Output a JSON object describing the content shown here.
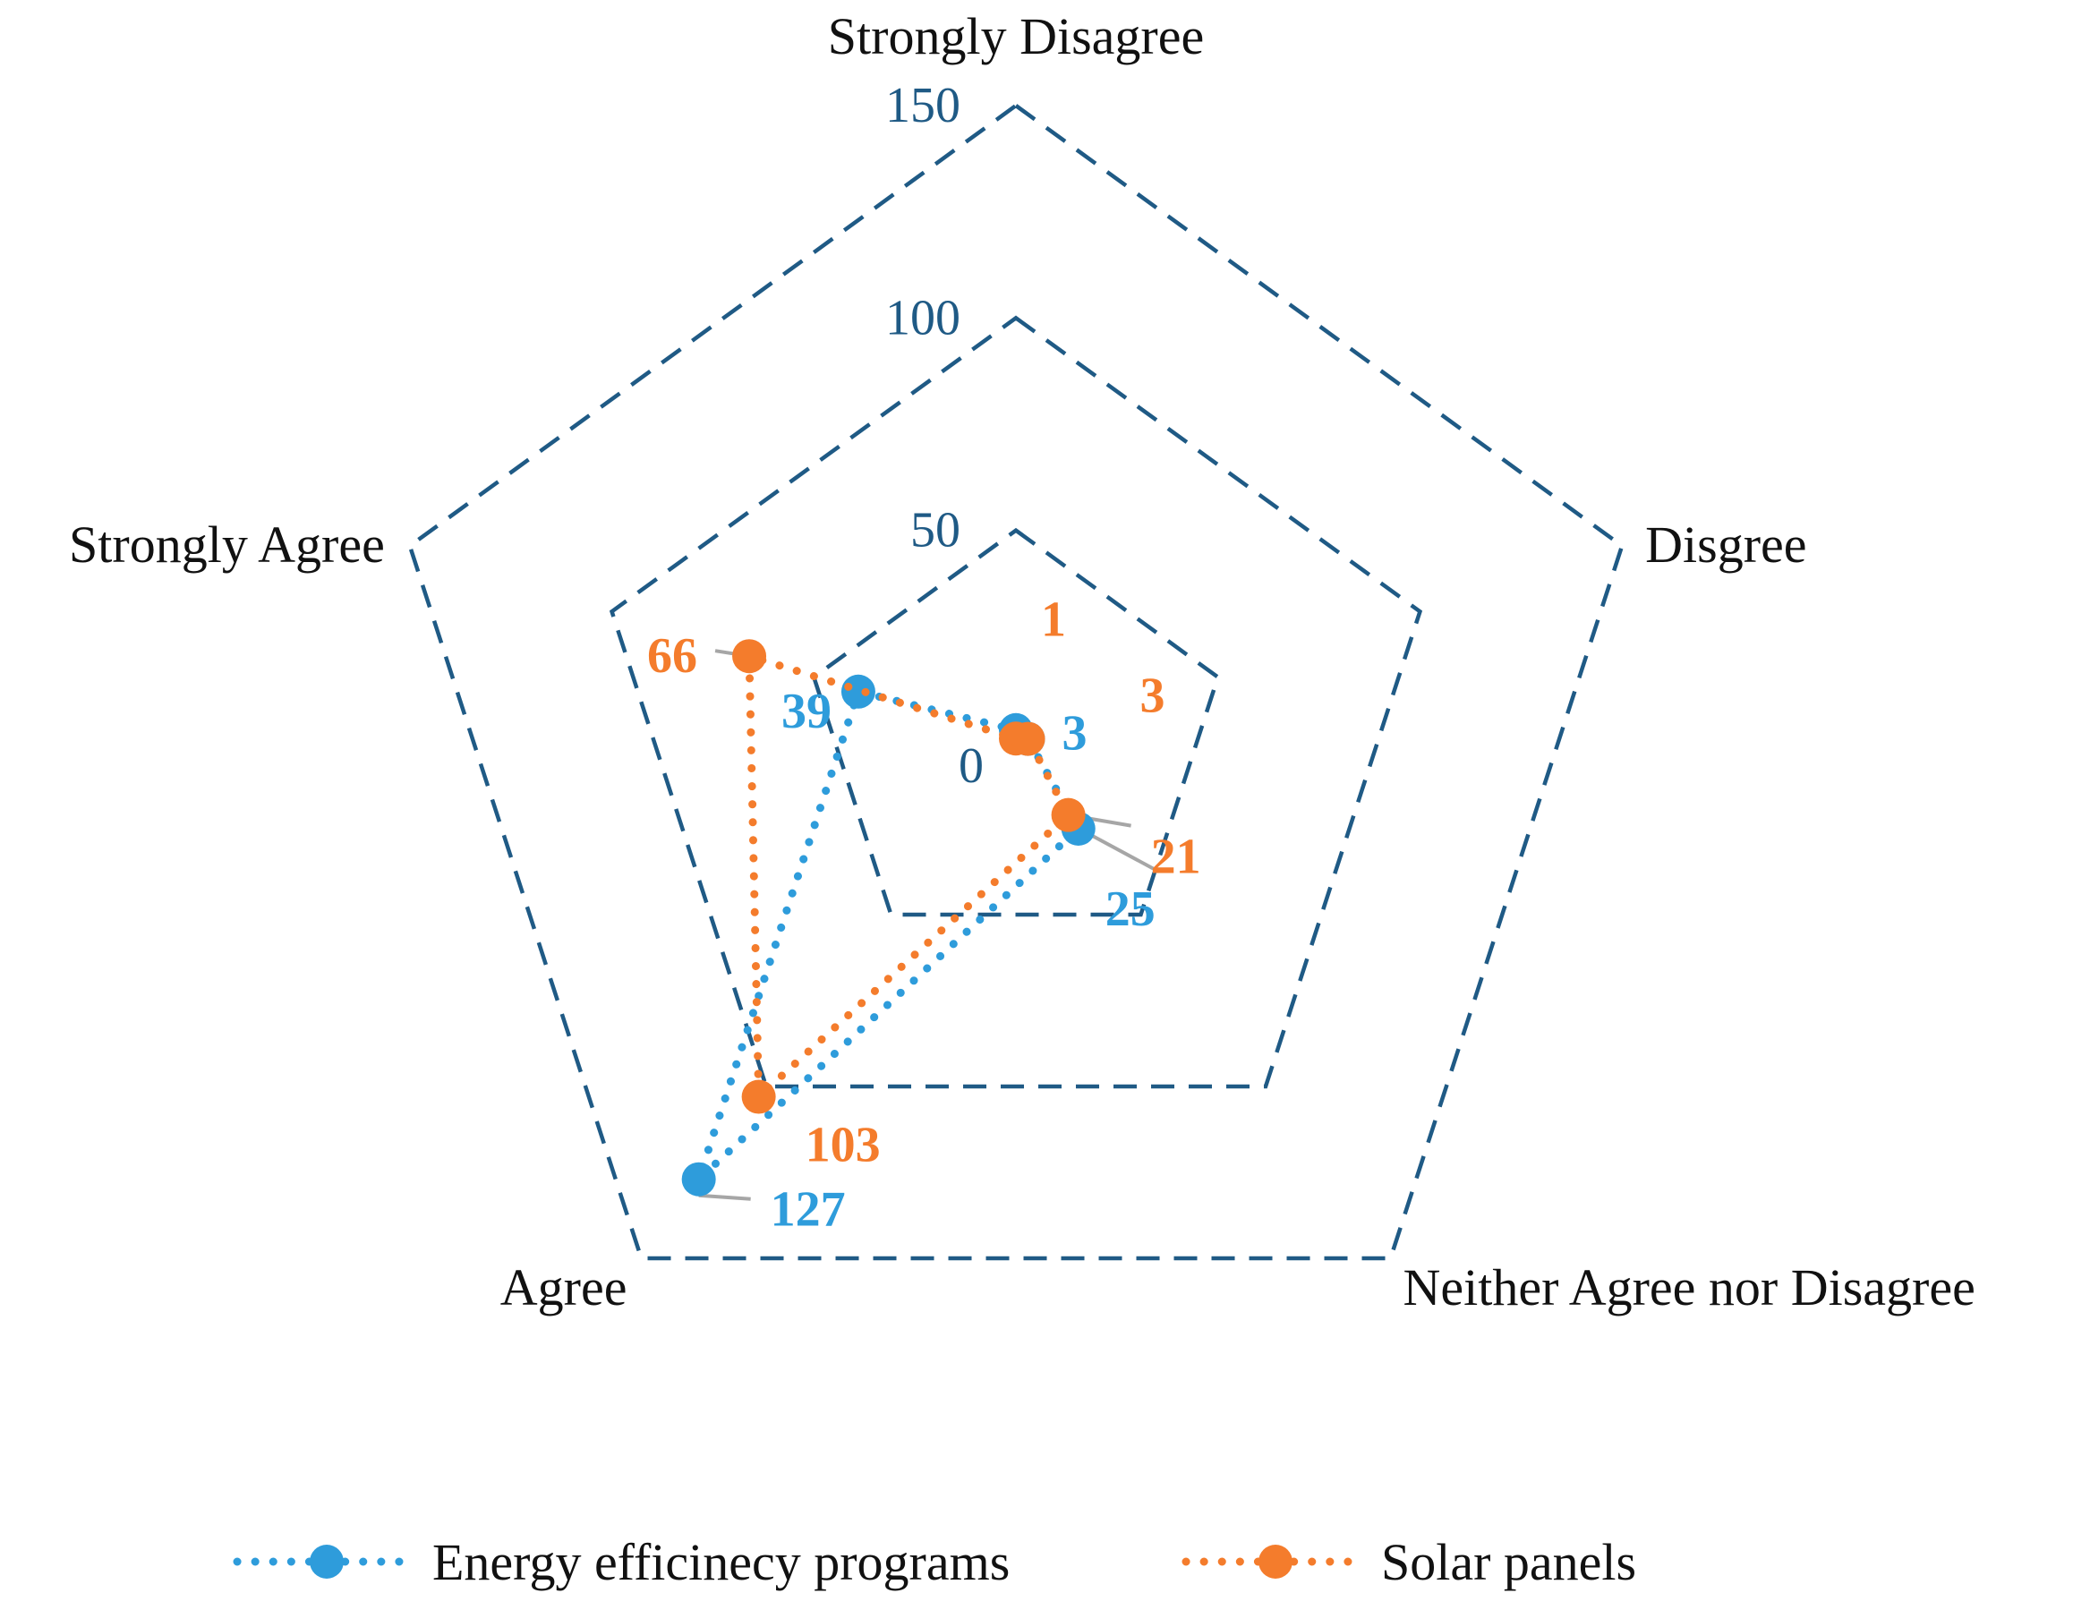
{
  "chart_data": {
    "type": "radar",
    "title": "",
    "categories": [
      "Strongly Disagree",
      "Disgree",
      "Neither Agree nor Disagree",
      "Agree",
      "Strongly Agree"
    ],
    "rlim": [
      0,
      150
    ],
    "ticks": [
      {
        "value": 0,
        "label": "0"
      },
      {
        "value": 50,
        "label": "50"
      },
      {
        "value": 100,
        "label": "100"
      },
      {
        "value": 150,
        "label": "150"
      }
    ],
    "series": [
      {
        "name": "Energy efficinecy programs",
        "color": "#2e9cdb",
        "values": [
          3,
          3,
          25,
          127,
          39
        ],
        "labels": [
          "",
          "3",
          "25",
          "127",
          "39"
        ]
      },
      {
        "name": "Solar panels",
        "color": "#f47c2c",
        "values": [
          1,
          3,
          21,
          103,
          66
        ],
        "labels": [
          "1",
          "3",
          "21",
          "103",
          "66"
        ]
      }
    ],
    "grid_color": "#1f5a85",
    "leader_color": "#a6a6a6",
    "legend_position": "bottom"
  }
}
